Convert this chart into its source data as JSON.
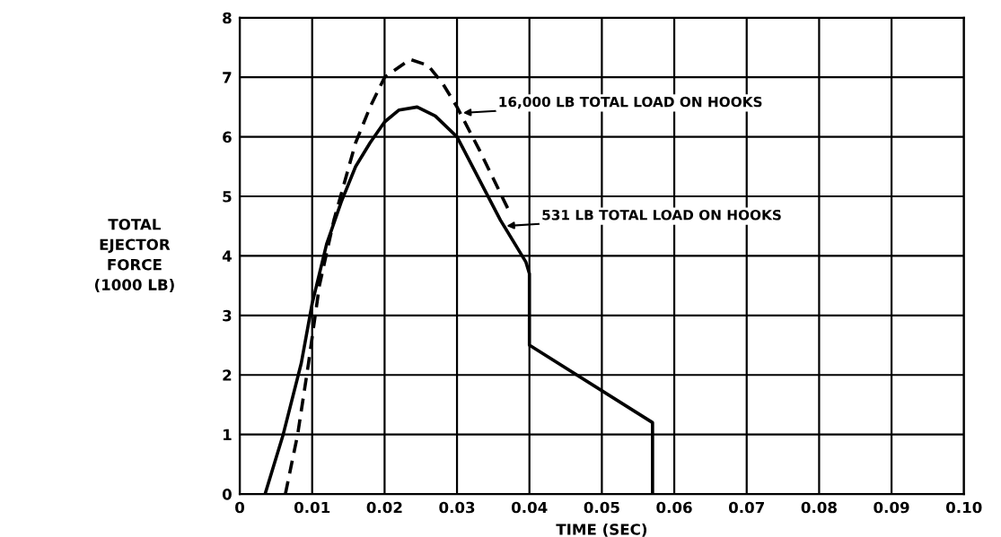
{
  "chart_data": {
    "type": "line",
    "xlabel": "TIME (SEC)",
    "ylabel": "TOTAL\nEJECTOR\nFORCE\n(1000 LB)",
    "xlim": [
      0,
      0.1
    ],
    "ylim": [
      0,
      8
    ],
    "xticks": [
      0,
      0.01,
      0.02,
      0.03,
      0.04,
      0.05,
      0.06,
      0.07,
      0.08,
      0.09,
      {
        "value": 0.1,
        "label": "0.10"
      }
    ],
    "yticks": [
      0,
      1,
      2,
      3,
      4,
      5,
      6,
      7,
      8
    ],
    "grid": true,
    "marker": "none",
    "series": [
      {
        "color": "#000000",
        "line_style": "dashed",
        "x": [
          0.0063,
          0.008,
          0.0095,
          0.011,
          0.013,
          0.016,
          0.018,
          0.02,
          0.0235,
          0.026,
          0.028,
          0.03,
          0.033,
          0.037
        ],
        "values": [
          0,
          1,
          2.2,
          3.5,
          4.6,
          5.9,
          6.5,
          7.0,
          7.3,
          7.2,
          6.9,
          6.5,
          5.8,
          4.8
        ]
      },
      {
        "color": "#000000",
        "line_style": "solid",
        "x": [
          0.0035,
          0.006,
          0.0085,
          0.01,
          0.012,
          0.014,
          0.016,
          0.018,
          0.02,
          0.022,
          0.0245,
          0.027,
          0.03,
          0.033,
          0.036,
          0.0395,
          0.04,
          0.04,
          0.057,
          0.057
        ],
        "values": [
          0,
          1,
          2.2,
          3.2,
          4.2,
          4.9,
          5.5,
          5.9,
          6.25,
          6.45,
          6.5,
          6.35,
          6.0,
          5.3,
          4.6,
          3.9,
          3.7,
          2.5,
          1.2,
          0
        ]
      }
    ],
    "annotations": [
      {
        "text": "16,000 LB TOTAL LOAD ON HOOKS",
        "x": 0.0305,
        "y": 6.4
      },
      {
        "text": "531 LB TOTAL LOAD ON HOOKS",
        "x": 0.0365,
        "y": 4.5
      }
    ]
  }
}
